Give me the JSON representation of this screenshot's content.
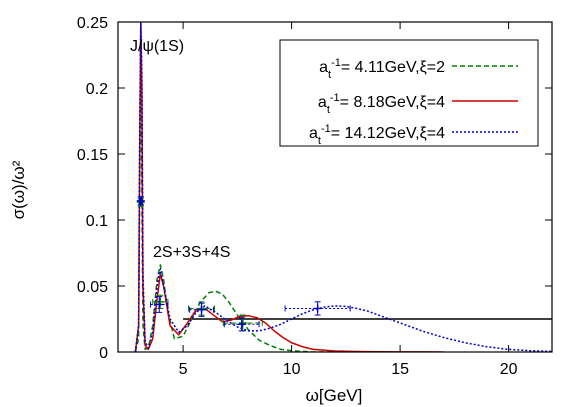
{
  "chart_data": {
    "type": "line",
    "xlabel": "ω[GeV]",
    "ylabel": "σ(ω)/ω²",
    "xlim": [
      2,
      22
    ],
    "ylim": [
      0,
      0.25
    ],
    "x_ticks": [
      5,
      10,
      15,
      20
    ],
    "y_ticks": [
      0,
      0.05,
      0.1,
      0.15,
      0.2,
      0.25
    ],
    "x_tick_labels": [
      "5",
      "10",
      "15",
      "20"
    ],
    "y_tick_labels": [
      "0",
      "0.05",
      "0.1",
      "0.15",
      "0.2",
      "0.25"
    ],
    "grid": false,
    "legend_position": "top-right",
    "annotations": [
      {
        "text": "J/ψ(1S)",
        "x": 3.05,
        "y": 0.238
      },
      {
        "text": "2S+3S+4S",
        "x": 3.9,
        "y": 0.075
      }
    ],
    "continuum_line": {
      "x": [
        5,
        22
      ],
      "y": 0.025,
      "color": "#000000"
    },
    "series": [
      {
        "name": "4.11GeV,ξ=2",
        "prefix": "a",
        "sub": "t",
        "sup": "-1",
        "color": "#008000",
        "style": "dashed",
        "x": [
          2.8,
          2.95,
          3.0,
          3.05,
          3.1,
          3.15,
          3.25,
          3.4,
          3.6,
          3.8,
          3.95,
          4.1,
          4.3,
          4.6,
          5.0,
          5.4,
          5.8,
          6.2,
          6.5,
          6.8,
          7.1,
          7.5,
          8.0,
          8.5,
          9.0,
          9.5,
          10.0,
          10.5,
          11.0,
          12.0
        ],
        "y": [
          0.0,
          0.01,
          0.12,
          0.25,
          0.12,
          0.02,
          0.002,
          0.003,
          0.02,
          0.055,
          0.066,
          0.055,
          0.03,
          0.01,
          0.012,
          0.025,
          0.038,
          0.045,
          0.046,
          0.044,
          0.038,
          0.028,
          0.017,
          0.009,
          0.005,
          0.002,
          0.001,
          0.0005,
          0.0,
          0.0
        ],
        "error_points": [
          {
            "x": 3.05,
            "y": 0.1135,
            "xerr": 0.05,
            "yerr": 0.003
          },
          {
            "x": 3.95,
            "y": 0.038,
            "xerr": 0.35,
            "yerr": 0.005
          },
          {
            "x": 5.85,
            "y": 0.033,
            "xerr": 0.6,
            "yerr": 0.005
          },
          {
            "x": 7.75,
            "y": 0.022,
            "xerr": 0.9,
            "yerr": 0.006
          }
        ]
      },
      {
        "name": "8.18GeV,ξ=4",
        "prefix": "a",
        "sub": "t",
        "sup": "-1",
        "color": "#cc0000",
        "style": "solid",
        "x": [
          2.8,
          2.95,
          3.0,
          3.05,
          3.1,
          3.15,
          3.25,
          3.4,
          3.6,
          3.8,
          3.95,
          4.1,
          4.4,
          4.8,
          5.2,
          5.6,
          6.0,
          6.4,
          6.8,
          7.2,
          7.6,
          8.0,
          8.4,
          8.8,
          9.2,
          9.6,
          10.0,
          10.5,
          11.0,
          12.0,
          13.0,
          14.0,
          15.0,
          16.0,
          17.0
        ],
        "y": [
          0.0,
          0.02,
          0.15,
          0.25,
          0.2,
          0.05,
          0.005,
          0.002,
          0.01,
          0.04,
          0.059,
          0.05,
          0.02,
          0.013,
          0.022,
          0.032,
          0.033,
          0.028,
          0.023,
          0.024,
          0.027,
          0.0275,
          0.026,
          0.022,
          0.016,
          0.011,
          0.007,
          0.004,
          0.002,
          0.0008,
          0.0004,
          0.0002,
          0.0001,
          5e-05,
          0.0
        ]
      },
      {
        "name": "14.12GeV,ξ=4",
        "prefix": "a",
        "sub": "t",
        "sup": "-1",
        "color": "#0000cc",
        "style": "dotted",
        "x": [
          2.8,
          2.95,
          3.0,
          3.05,
          3.1,
          3.15,
          3.25,
          3.4,
          3.6,
          3.8,
          3.95,
          4.1,
          4.4,
          4.8,
          5.2,
          5.6,
          6.0,
          6.5,
          7.0,
          7.5,
          8.0,
          8.5,
          9.0,
          9.5,
          10.0,
          10.5,
          11.0,
          11.5,
          12.0,
          12.5,
          13.0,
          13.5,
          14.0,
          15.0,
          16.0,
          17.0,
          18.0,
          19.0,
          20.0,
          21.0,
          22.0
        ],
        "y": [
          0.0,
          0.02,
          0.17,
          0.25,
          0.21,
          0.06,
          0.008,
          0.003,
          0.015,
          0.05,
          0.063,
          0.05,
          0.025,
          0.015,
          0.02,
          0.03,
          0.035,
          0.03,
          0.024,
          0.019,
          0.016,
          0.016,
          0.018,
          0.021,
          0.025,
          0.029,
          0.032,
          0.034,
          0.035,
          0.0345,
          0.033,
          0.031,
          0.028,
          0.022,
          0.016,
          0.011,
          0.007,
          0.004,
          0.002,
          0.001,
          0.0005
        ],
        "error_points": [
          {
            "x": 3.05,
            "y": 0.1145,
            "xerr": 0.05,
            "yerr": 0.003
          },
          {
            "x": 3.9,
            "y": 0.036,
            "xerr": 0.4,
            "yerr": 0.006
          },
          {
            "x": 5.85,
            "y": 0.032,
            "xerr": 0.55,
            "yerr": 0.005
          },
          {
            "x": 7.7,
            "y": 0.021,
            "xerr": 0.8,
            "yerr": 0.005
          },
          {
            "x": 11.2,
            "y": 0.033,
            "xerr": 1.5,
            "yerr": 0.005
          }
        ]
      }
    ]
  }
}
